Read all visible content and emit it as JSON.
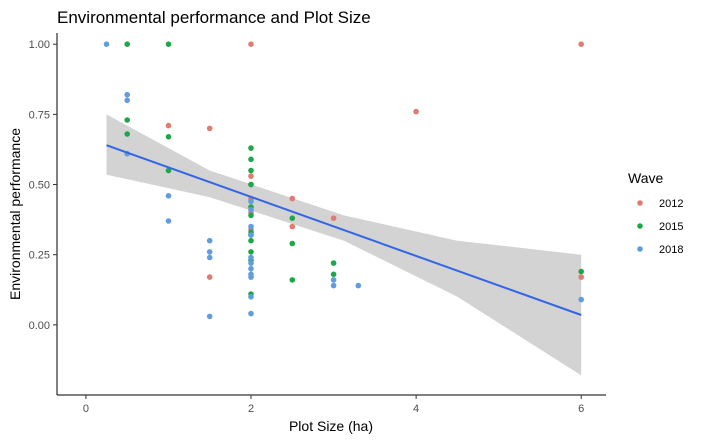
{
  "chart_data": {
    "type": "scatter",
    "title": "Environmental performance and Plot Size",
    "xlabel": "Plot Size (ha)",
    "ylabel": "Environmental performance",
    "xlim": [
      -0.35,
      6.3
    ],
    "ylim": [
      -0.25,
      1.04
    ],
    "x_ticks": [
      0,
      2,
      4,
      6
    ],
    "y_ticks": [
      0.0,
      0.25,
      0.5,
      0.75,
      1.0
    ],
    "x_tick_labels": [
      "0",
      "2",
      "4",
      "6"
    ],
    "y_tick_labels": [
      "0.00",
      "0.25",
      "0.50",
      "0.75",
      "1.00"
    ],
    "grid": false,
    "legend": {
      "title": "Wave",
      "position": "right"
    },
    "series": [
      {
        "name": "2012",
        "color": "#E07B6F",
        "points": [
          [
            1,
            0.71
          ],
          [
            1.5,
            0.7
          ],
          [
            1.5,
            0.17
          ],
          [
            2,
            1.0
          ],
          [
            2,
            0.53
          ],
          [
            2,
            0.5
          ],
          [
            2,
            0.45
          ],
          [
            2,
            0.4
          ],
          [
            2,
            0.34
          ],
          [
            2.5,
            0.45
          ],
          [
            2.5,
            0.35
          ],
          [
            3,
            0.38
          ],
          [
            4,
            0.76
          ],
          [
            6,
            1.0
          ],
          [
            6,
            0.17
          ]
        ]
      },
      {
        "name": "2015",
        "color": "#1EA748",
        "points": [
          [
            0.5,
            1.0
          ],
          [
            0.5,
            0.73
          ],
          [
            0.5,
            0.68
          ],
          [
            1,
            1.0
          ],
          [
            1,
            0.67
          ],
          [
            1,
            0.55
          ],
          [
            2,
            0.63
          ],
          [
            2,
            0.59
          ],
          [
            2,
            0.55
          ],
          [
            2,
            0.5
          ],
          [
            2,
            0.42
          ],
          [
            2,
            0.39
          ],
          [
            2,
            0.33
          ],
          [
            2,
            0.32
          ],
          [
            2,
            0.3
          ],
          [
            2,
            0.26
          ],
          [
            2,
            0.23
          ],
          [
            2,
            0.11
          ],
          [
            2.5,
            0.38
          ],
          [
            2.5,
            0.29
          ],
          [
            2.5,
            0.16
          ],
          [
            3,
            0.22
          ],
          [
            3,
            0.18
          ],
          [
            6,
            0.19
          ]
        ]
      },
      {
        "name": "2018",
        "color": "#619CDE",
        "points": [
          [
            0.25,
            1.0
          ],
          [
            0.5,
            0.82
          ],
          [
            0.5,
            0.8
          ],
          [
            0.5,
            0.61
          ],
          [
            1,
            0.46
          ],
          [
            1,
            0.37
          ],
          [
            1.5,
            0.3
          ],
          [
            1.5,
            0.26
          ],
          [
            1.5,
            0.24
          ],
          [
            1.5,
            0.03
          ],
          [
            2,
            0.44
          ],
          [
            2,
            0.41
          ],
          [
            2,
            0.35
          ],
          [
            2,
            0.32
          ],
          [
            2,
            0.24
          ],
          [
            2,
            0.22
          ],
          [
            2,
            0.2
          ],
          [
            2,
            0.18
          ],
          [
            2,
            0.17
          ],
          [
            2,
            0.1
          ],
          [
            2,
            0.04
          ],
          [
            3,
            0.16
          ],
          [
            3,
            0.14
          ],
          [
            3.3,
            0.14
          ],
          [
            6,
            0.09
          ]
        ]
      }
    ],
    "trend": {
      "color": "#3366E6",
      "band_color": "#D3D3D3",
      "x": [
        0.25,
        6
      ],
      "y": [
        0.64,
        0.035
      ],
      "band_upper": [
        0.75,
        0.25
      ],
      "band_lower": [
        0.535,
        -0.18
      ],
      "band_x": [
        0.25,
        1.5,
        3.125,
        4.5,
        6
      ],
      "band_upper_pts": [
        0.75,
        0.55,
        0.39,
        0.3,
        0.25
      ],
      "band_lower_pts": [
        0.535,
        0.455,
        0.3,
        0.1,
        -0.18
      ]
    }
  }
}
